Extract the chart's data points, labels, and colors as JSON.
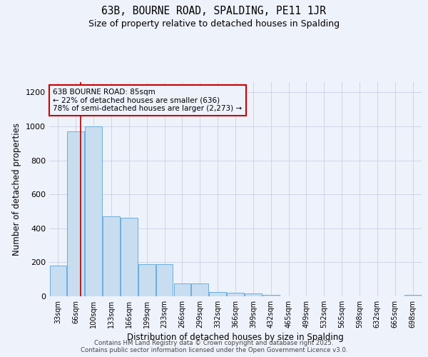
{
  "title": "63B, BOURNE ROAD, SPALDING, PE11 1JR",
  "subtitle": "Size of property relative to detached houses in Spalding",
  "xlabel": "Distribution of detached houses by size in Spalding",
  "ylabel": "Number of detached properties",
  "categories": [
    "33sqm",
    "66sqm",
    "100sqm",
    "133sqm",
    "166sqm",
    "199sqm",
    "233sqm",
    "266sqm",
    "299sqm",
    "332sqm",
    "366sqm",
    "399sqm",
    "432sqm",
    "465sqm",
    "499sqm",
    "532sqm",
    "565sqm",
    "598sqm",
    "632sqm",
    "665sqm",
    "698sqm"
  ],
  "values": [
    180,
    970,
    1000,
    470,
    460,
    190,
    190,
    75,
    75,
    25,
    20,
    15,
    10,
    0,
    0,
    0,
    0,
    0,
    0,
    0,
    10
  ],
  "bar_color": "#c9ddf0",
  "bar_edge_color": "#6aaee0",
  "grid_color": "#ccd5e8",
  "background_color": "#eef2fa",
  "property_line_color": "#aa0000",
  "property_line_x": 1.28,
  "annotation_text": "63B BOURNE ROAD: 85sqm\n← 22% of detached houses are smaller (636)\n78% of semi-detached houses are larger (2,273) →",
  "annotation_box_color": "#cc0000",
  "footer_line1": "Contains HM Land Registry data © Crown copyright and database right 2025.",
  "footer_line2": "Contains public sector information licensed under the Open Government Licence v3.0.",
  "ylim": [
    0,
    1260
  ],
  "yticks": [
    0,
    200,
    400,
    600,
    800,
    1000,
    1200
  ]
}
